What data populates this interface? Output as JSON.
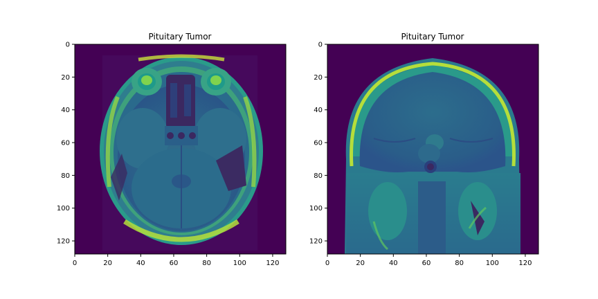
{
  "figure": {
    "panels": [
      {
        "title": "Pituitary Tumor",
        "view": "axial MRI slice",
        "x_ticks": [
          "0",
          "20",
          "40",
          "60",
          "80",
          "100",
          "120"
        ],
        "y_ticks": [
          "0",
          "20",
          "40",
          "60",
          "80",
          "100",
          "120"
        ],
        "x_range": [
          0,
          128
        ],
        "y_range": [
          0,
          128
        ],
        "colormap": "viridis"
      },
      {
        "title": "Pituitary Tumor",
        "view": "coronal MRI slice",
        "x_ticks": [
          "0",
          "20",
          "40",
          "60",
          "80",
          "100",
          "120"
        ],
        "y_ticks": [
          "0",
          "20",
          "40",
          "60",
          "80",
          "100",
          "120"
        ],
        "x_range": [
          0,
          128
        ],
        "y_range": [
          0,
          128
        ],
        "colormap": "viridis"
      }
    ]
  },
  "colors": {
    "background": "#440154",
    "tissue_dark": "#2c4e7e",
    "tissue_mid": "#267a8e",
    "tissue_light": "#2a9f87",
    "bright": "#a9dd3c",
    "bright_hot": "#d8e63a",
    "cavity": "#3b2860"
  }
}
